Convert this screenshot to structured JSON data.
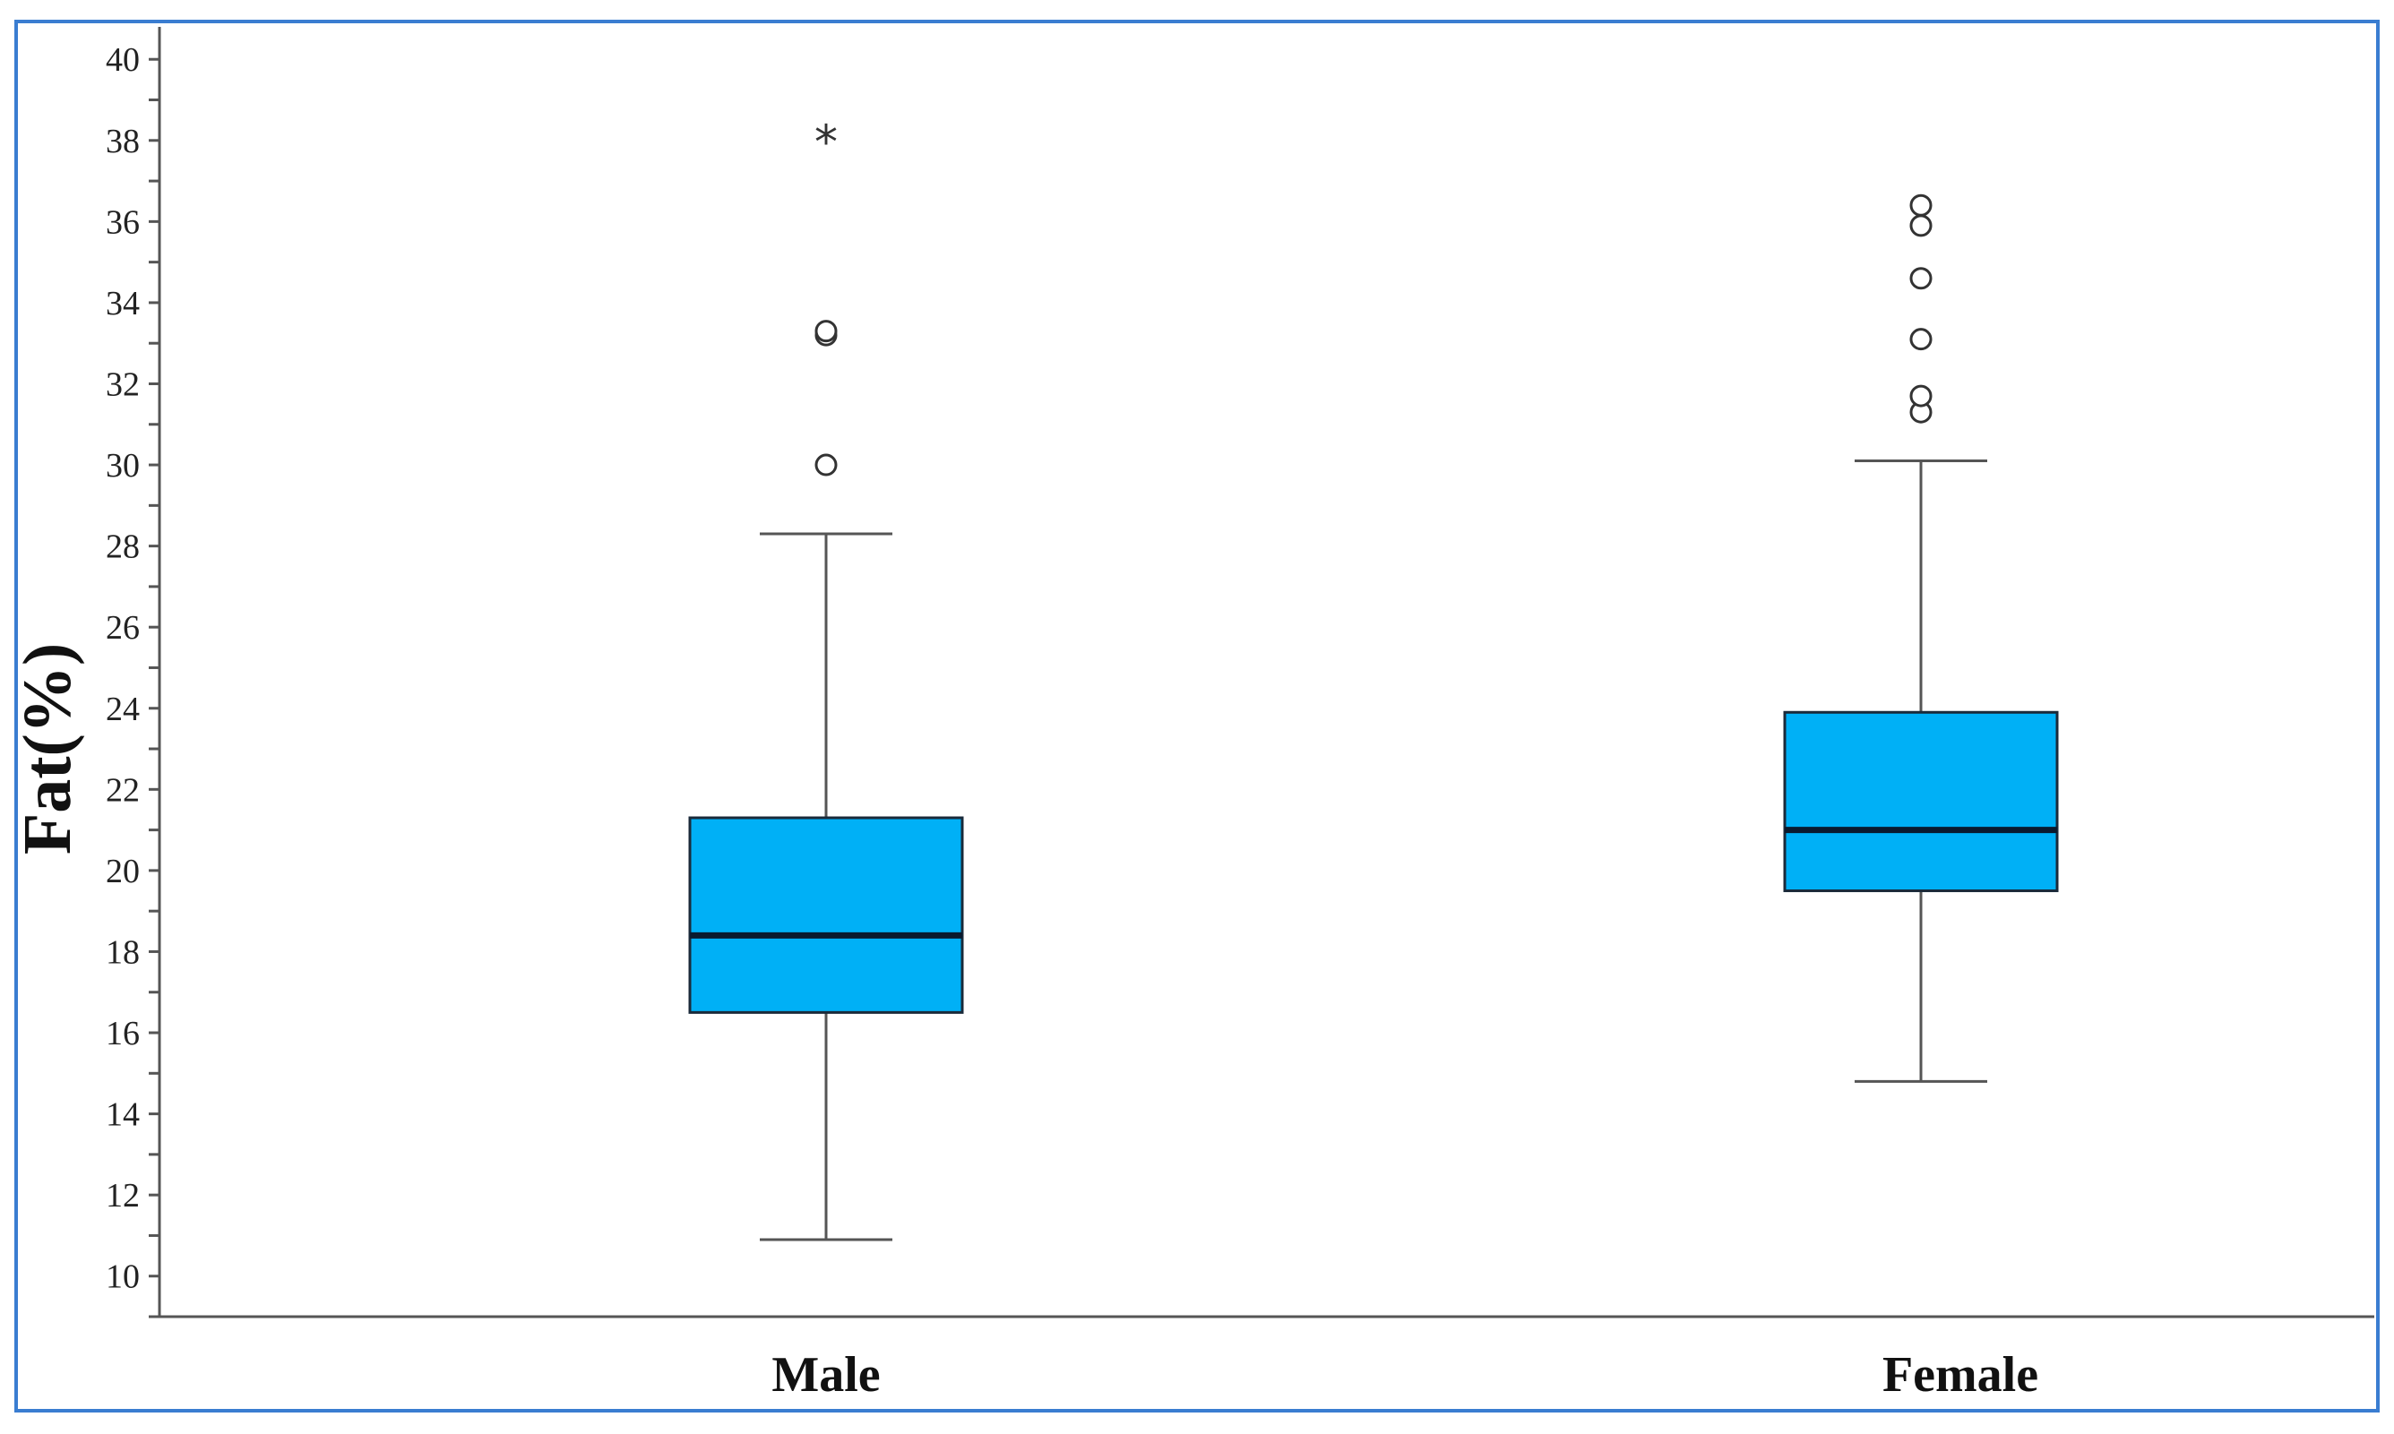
{
  "chart_data": {
    "type": "box",
    "title": "",
    "xlabel": "",
    "ylabel": "Fat(%)",
    "ylim": [
      9,
      40.8
    ],
    "yticks": [
      10,
      12,
      14,
      16,
      18,
      20,
      22,
      24,
      26,
      28,
      30,
      32,
      34,
      36,
      38,
      40
    ],
    "ytick_labels": [
      "10",
      "12",
      "14",
      "16",
      "18",
      "20",
      "22",
      "24",
      "26",
      "28",
      "30",
      "32",
      "34",
      "36",
      "38",
      "40"
    ],
    "grid": false,
    "legend": "none",
    "box_color": "#00b0f6",
    "categories": [
      "Male",
      "Female"
    ],
    "boxes": [
      {
        "category": "Male",
        "whisker_low": 10.9,
        "q1": 16.5,
        "median": 18.4,
        "q3": 21.3,
        "whisker_high": 28.3,
        "outliers": [
          30.0,
          33.2,
          33.3
        ],
        "extremes": [
          38.1
        ]
      },
      {
        "category": "Female",
        "whisker_low": 14.8,
        "q1": 19.5,
        "median": 21.0,
        "q3": 23.9,
        "whisker_high": 30.1,
        "outliers": [
          31.3,
          31.7,
          33.1,
          34.6,
          35.9,
          36.4
        ],
        "extremes": []
      }
    ]
  }
}
